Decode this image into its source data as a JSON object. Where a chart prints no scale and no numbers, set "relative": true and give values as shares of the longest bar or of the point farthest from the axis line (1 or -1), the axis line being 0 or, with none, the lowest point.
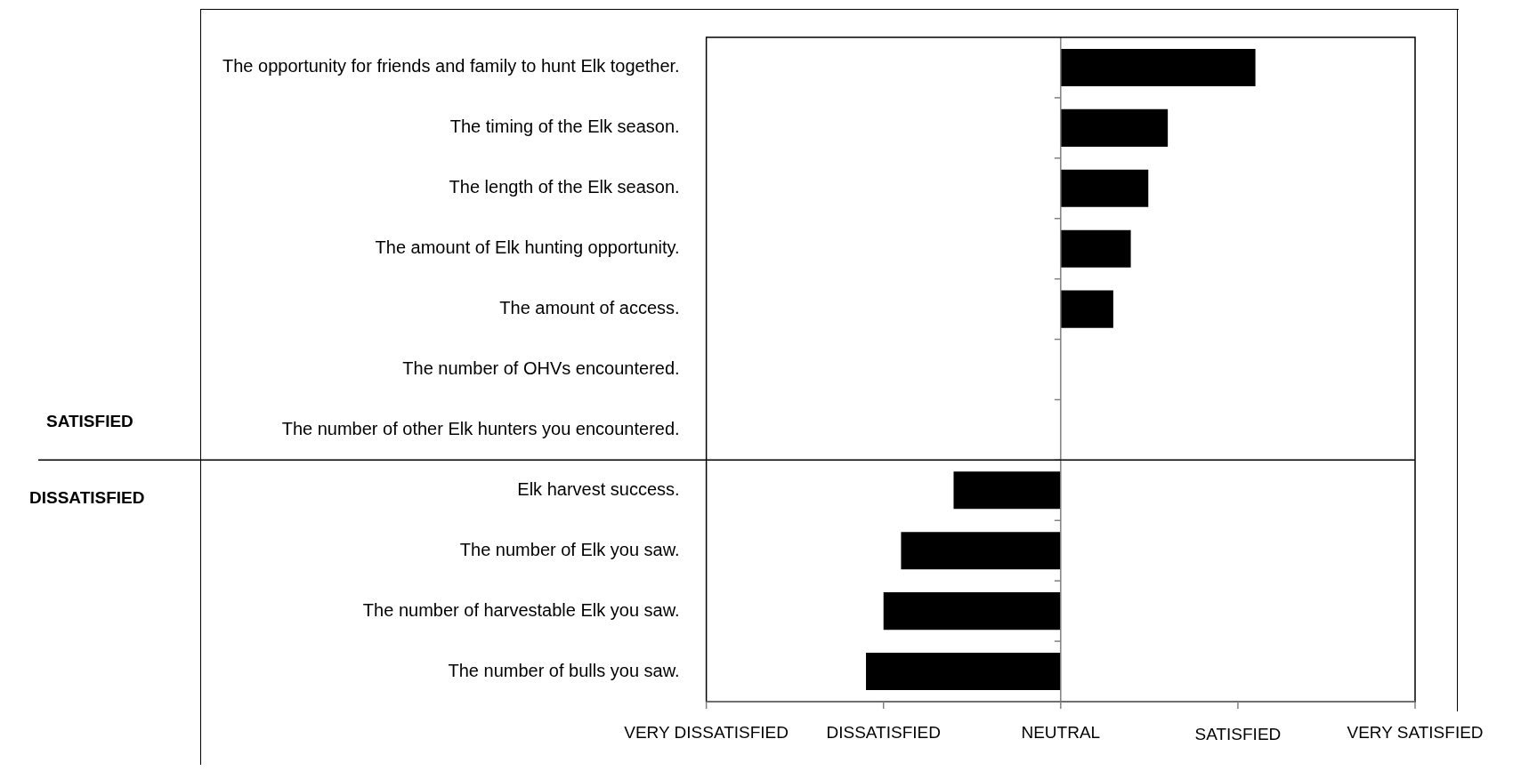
{
  "chart_data": {
    "type": "bar",
    "orientation": "horizontal",
    "relative": true,
    "categories": [
      "The opportunity for friends and family to hunt Elk together.",
      "The timing of the Elk season.",
      "The length of the Elk season.",
      "The amount of Elk hunting opportunity.",
      "The amount of access.",
      "The number of OHVs encountered.",
      "The number of other Elk hunters you encountered.",
      "Elk harvest success.",
      "The number of Elk you saw.",
      "The number of harvestable Elk you saw.",
      "The number of bulls you saw."
    ],
    "values": [
      1.0,
      0.55,
      0.45,
      0.36,
      0.27,
      0,
      0,
      -0.55,
      -0.82,
      -0.91,
      -1.0
    ],
    "color": "#000000",
    "ref_lines": [
      {
        "axis": "x",
        "value": 0,
        "color": "#808080"
      }
    ],
    "annotations": [
      "SATISFIED",
      "DISSATISFIED",
      "VERY DISSATISFIED",
      "DISSATISFIED",
      "NEUTRAL",
      "SATISFIED",
      "VERY SATISFIED"
    ],
    "legend": false
  }
}
